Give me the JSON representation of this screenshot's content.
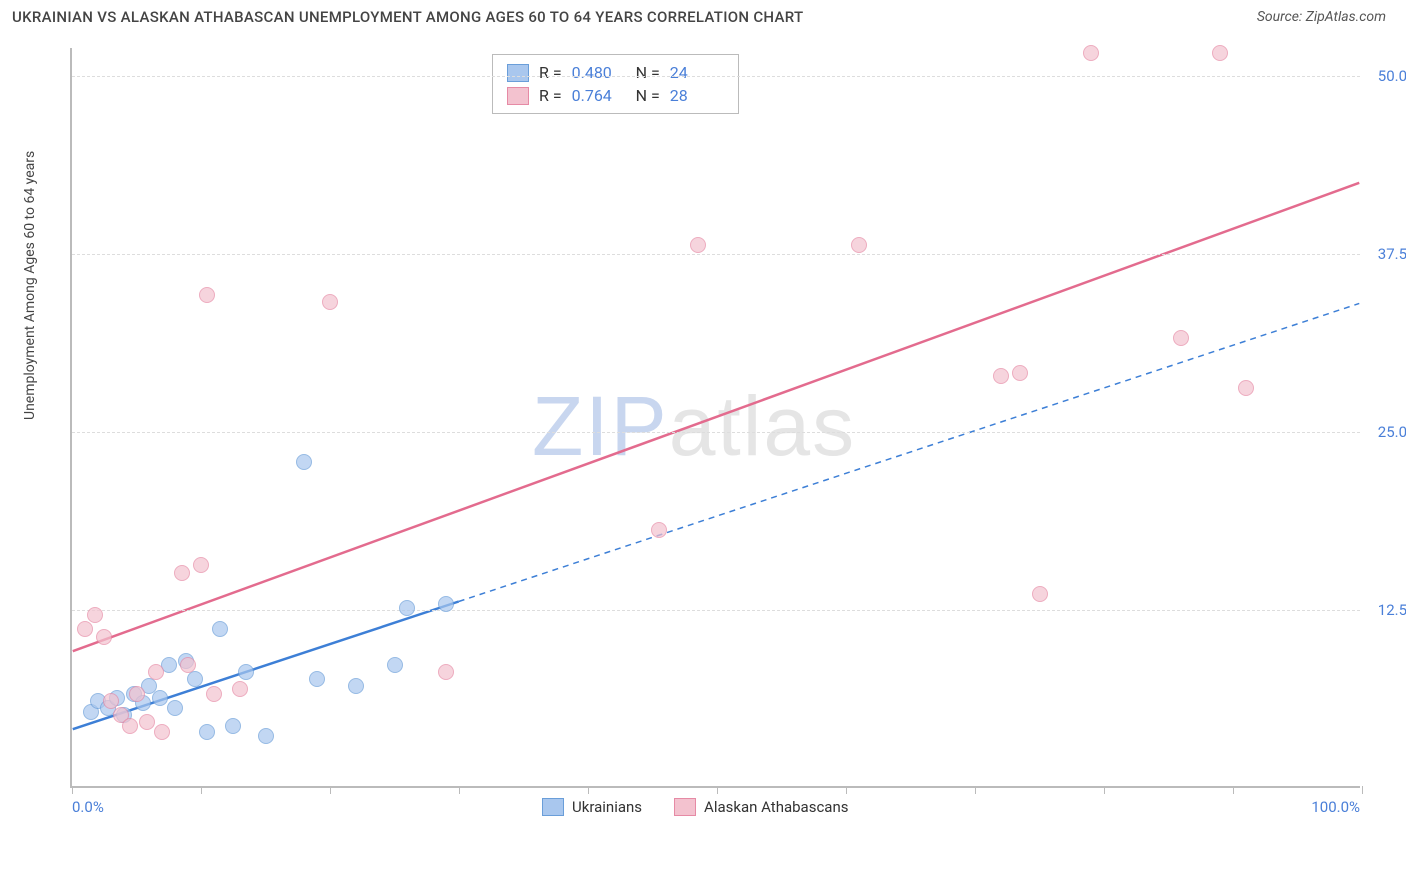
{
  "header": {
    "title": "UKRAINIAN VS ALASKAN ATHABASCAN UNEMPLOYMENT AMONG AGES 60 TO 64 YEARS CORRELATION CHART",
    "source": "Source: ZipAtlas.com"
  },
  "chart": {
    "y_axis_label": "Unemployment Among Ages 60 to 64 years",
    "xlim": [
      0,
      100
    ],
    "ylim": [
      0,
      52
    ],
    "x_tick_positions": [
      0,
      10,
      20,
      30,
      40,
      50,
      60,
      70,
      80,
      90,
      100
    ],
    "y_ticks": [
      {
        "val": 12.5,
        "label": "12.5%"
      },
      {
        "val": 25.0,
        "label": "25.0%"
      },
      {
        "val": 37.5,
        "label": "37.5%"
      },
      {
        "val": 50.0,
        "label": "50.0%"
      }
    ],
    "x_label_min": "0.0%",
    "x_label_max": "100.0%",
    "grid_color": "#dddddd",
    "axis_color": "#bbbbbb",
    "background_color": "#ffffff",
    "watermark": {
      "zip": "ZIP",
      "rest": "atlas"
    },
    "series": [
      {
        "name": "Ukrainians",
        "fill": "#a9c7ee",
        "stroke": "#6a9ed9",
        "line_color": "#3d7fd6",
        "r": "0.480",
        "n": "24",
        "trend": {
          "x1": 0,
          "y1": 4.0,
          "x2": 30,
          "y2": 13.0,
          "ext_x2": 100,
          "ext_y2": 34.0
        },
        "points": [
          {
            "x": 1.5,
            "y": 5.2
          },
          {
            "x": 2.0,
            "y": 6.0
          },
          {
            "x": 2.8,
            "y": 5.5
          },
          {
            "x": 3.5,
            "y": 6.2
          },
          {
            "x": 4.0,
            "y": 5.0
          },
          {
            "x": 4.8,
            "y": 6.5
          },
          {
            "x": 5.5,
            "y": 5.8
          },
          {
            "x": 6.0,
            "y": 7.0
          },
          {
            "x": 6.8,
            "y": 6.2
          },
          {
            "x": 7.5,
            "y": 8.5
          },
          {
            "x": 8.0,
            "y": 5.5
          },
          {
            "x": 8.8,
            "y": 8.8
          },
          {
            "x": 9.5,
            "y": 7.5
          },
          {
            "x": 10.5,
            "y": 3.8
          },
          {
            "x": 11.5,
            "y": 11.0
          },
          {
            "x": 12.5,
            "y": 4.2
          },
          {
            "x": 13.5,
            "y": 8.0
          },
          {
            "x": 15.0,
            "y": 3.5
          },
          {
            "x": 18.0,
            "y": 22.8
          },
          {
            "x": 19.0,
            "y": 7.5
          },
          {
            "x": 22.0,
            "y": 7.0
          },
          {
            "x": 26.0,
            "y": 12.5
          },
          {
            "x": 29.0,
            "y": 12.8
          },
          {
            "x": 25.0,
            "y": 8.5
          }
        ]
      },
      {
        "name": "Alaskan Athabascans",
        "fill": "#f3c2cf",
        "stroke": "#e68aa5",
        "line_color": "#e36b8e",
        "r": "0.764",
        "n": "28",
        "trend": {
          "x1": 0,
          "y1": 9.5,
          "x2": 100,
          "y2": 42.5
        },
        "points": [
          {
            "x": 1.0,
            "y": 11.0
          },
          {
            "x": 1.8,
            "y": 12.0
          },
          {
            "x": 2.5,
            "y": 10.5
          },
          {
            "x": 3.0,
            "y": 6.0
          },
          {
            "x": 3.8,
            "y": 5.0
          },
          {
            "x": 4.5,
            "y": 4.2
          },
          {
            "x": 5.0,
            "y": 6.5
          },
          {
            "x": 5.8,
            "y": 4.5
          },
          {
            "x": 6.5,
            "y": 8.0
          },
          {
            "x": 7.0,
            "y": 3.8
          },
          {
            "x": 8.5,
            "y": 15.0
          },
          {
            "x": 9.0,
            "y": 8.5
          },
          {
            "x": 10.0,
            "y": 15.5
          },
          {
            "x": 10.5,
            "y": 34.5
          },
          {
            "x": 11.0,
            "y": 6.5
          },
          {
            "x": 13.0,
            "y": 6.8
          },
          {
            "x": 20.0,
            "y": 34.0
          },
          {
            "x": 29.0,
            "y": 8.0
          },
          {
            "x": 48.5,
            "y": 38.0
          },
          {
            "x": 45.5,
            "y": 18.0
          },
          {
            "x": 61.0,
            "y": 38.0
          },
          {
            "x": 72.0,
            "y": 28.8
          },
          {
            "x": 73.5,
            "y": 29.0
          },
          {
            "x": 75.0,
            "y": 13.5
          },
          {
            "x": 79.0,
            "y": 51.5
          },
          {
            "x": 86.0,
            "y": 31.5
          },
          {
            "x": 89.0,
            "y": 51.5
          },
          {
            "x": 91.0,
            "y": 28.0
          }
        ]
      }
    ]
  },
  "legend_bottom": [
    {
      "label": "Ukrainians",
      "fill": "#a9c7ee",
      "stroke": "#6a9ed9"
    },
    {
      "label": "Alaskan Athabascans",
      "fill": "#f3c2cf",
      "stroke": "#e68aa5"
    }
  ]
}
